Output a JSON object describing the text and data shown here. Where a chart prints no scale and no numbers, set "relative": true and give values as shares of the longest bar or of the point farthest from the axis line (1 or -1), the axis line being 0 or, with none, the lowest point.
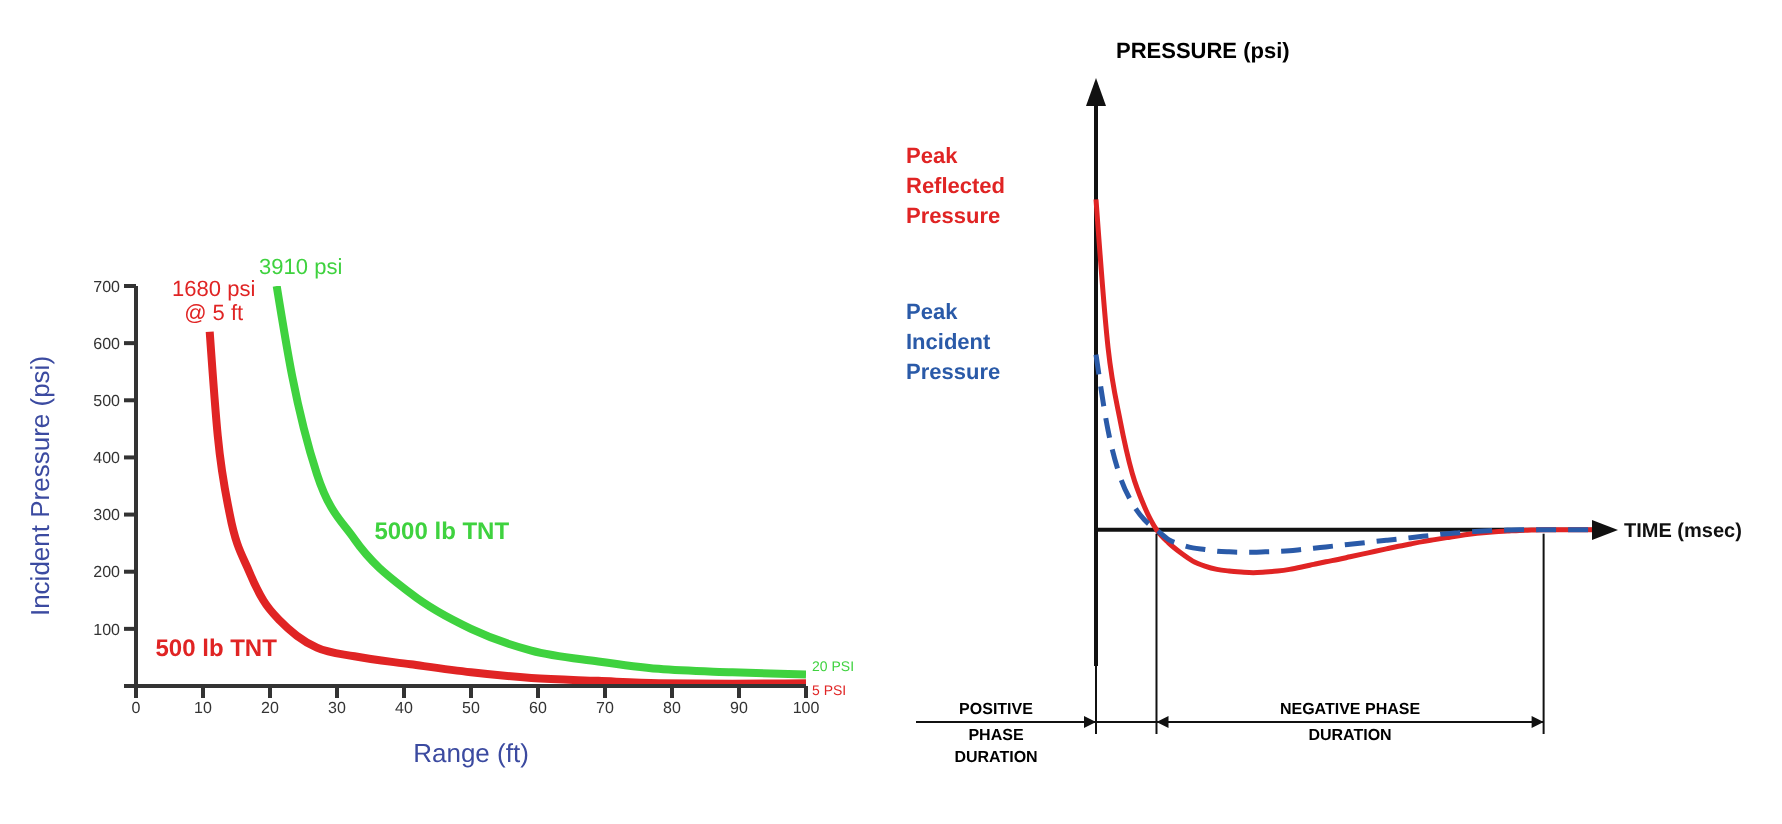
{
  "chart_data": [
    {
      "type": "line",
      "xlabel": "Range (ft)",
      "ylabel": "Incident Pressure (psi)",
      "x": [
        11,
        12.2,
        14,
        16.9,
        19,
        21.5,
        24,
        27,
        32.6,
        41,
        50,
        59,
        69,
        78,
        89,
        100
      ],
      "xlim": [
        0,
        100
      ],
      "xticks": [
        0,
        10,
        20,
        30,
        40,
        50,
        60,
        70,
        80,
        90,
        100
      ],
      "ylim": [
        0,
        700
      ],
      "yticks": [
        {
          "value": 0,
          "label": null
        },
        100,
        200,
        300,
        400,
        500,
        600,
        700
      ],
      "series": [
        {
          "name": "500 lb TNT",
          "color": "#e02424",
          "values": [
            620,
            438,
            300,
            200,
            150,
            114,
            88,
            67,
            52,
            38,
            24,
            14,
            9,
            5,
            4,
            5
          ]
        },
        {
          "name": "5000 lb TNT",
          "color": "#3fd23f",
          "x": [
            21,
            23.3,
            27,
            32.6,
            41,
            50,
            59,
            69,
            78,
            89,
            100
          ],
          "values": [
            700,
            543,
            371,
            257,
            162,
            100,
            62,
            43,
            30,
            24,
            20
          ]
        }
      ],
      "annotations": [
        {
          "text": "1680 psi @ 5 ft",
          "x": 11,
          "y": 620
        },
        {
          "text": "3910 psi",
          "x": 21,
          "y": 700
        },
        {
          "text": "20 PSI",
          "x": 100,
          "y": 20
        },
        {
          "text": "5 PSI",
          "x": 100,
          "y": 5
        }
      ]
    },
    {
      "type": "line",
      "relative": true,
      "ylabel": "PRESSURE (psi)",
      "xlabel": "TIME (msec)",
      "categories": [
        null,
        null,
        null,
        null,
        null,
        null,
        null,
        null,
        null,
        null,
        null,
        null,
        null,
        null,
        null,
        null,
        null,
        null,
        null,
        null,
        null,
        null,
        null,
        null,
        null,
        null,
        null,
        null,
        null,
        null,
        null,
        null,
        null,
        null,
        null,
        null,
        null,
        null,
        null,
        null,
        null,
        null
      ],
      "series": [
        {
          "name": "Peak Reflected Pressure",
          "color": "#e02424",
          "line_style": "solid",
          "values": [
            1,
            0.55,
            0.33,
            0.17,
            0.07,
            0,
            -0.04,
            -0.07,
            -0.095,
            -0.11,
            -0.12,
            -0.125,
            -0.128,
            -0.13,
            -0.128,
            -0.125,
            -0.12,
            -0.113,
            -0.105,
            -0.097,
            -0.09,
            -0.082,
            -0.074,
            -0.066,
            -0.058,
            -0.05,
            -0.043,
            -0.036,
            -0.03,
            -0.024,
            -0.018,
            -0.013,
            -0.009,
            -0.006,
            -0.004,
            -0.002,
            -0.001,
            0,
            0,
            0,
            0,
            0
          ]
        },
        {
          "name": "Peak Incident Pressure",
          "color": "#2a5aa8",
          "line_style": "dashed",
          "values": [
            0.53,
            0.3,
            0.16,
            0.08,
            0.03,
            0,
            -0.03,
            -0.045,
            -0.055,
            -0.06,
            -0.065,
            -0.067,
            -0.068,
            -0.068,
            -0.067,
            -0.066,
            -0.064,
            -0.06,
            -0.056,
            -0.052,
            -0.048,
            -0.044,
            -0.04,
            -0.036,
            -0.032,
            -0.028,
            -0.024,
            -0.02,
            -0.016,
            -0.012,
            -0.009,
            -0.006,
            -0.004,
            -0.002,
            -0.001,
            0,
            0,
            0,
            0,
            0,
            0,
            0
          ]
        }
      ],
      "annotations": [
        "POSITIVE PHASE DURATION",
        "NEGATIVE PHASE DURATION"
      ]
    }
  ]
}
